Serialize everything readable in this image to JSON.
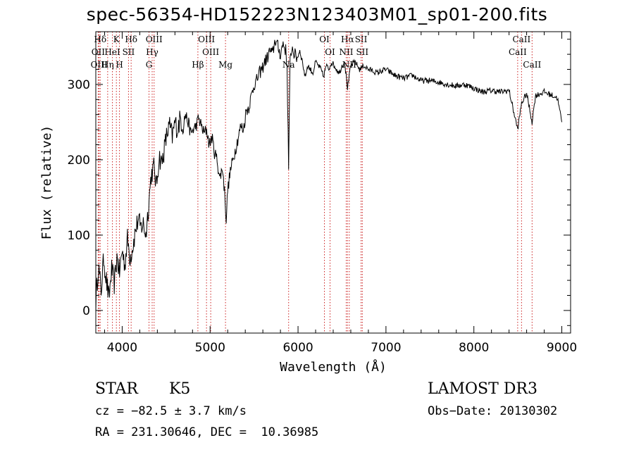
{
  "title": "spec-56354-HD152223N123403M01_sp01-200.fits",
  "chart_data": {
    "type": "line",
    "title": "spec-56354-HD152223N123403M01_sp01-200.fits",
    "xlabel": "Wavelength (Å)",
    "ylabel": "Flux (relative)",
    "xlim": [
      3700,
      9100
    ],
    "ylim": [
      -30,
      370
    ],
    "xticks": [
      4000,
      5000,
      6000,
      7000,
      8000,
      9000
    ],
    "yticks": [
      0,
      100,
      200,
      300
    ],
    "grid": false,
    "series": [
      {
        "name": "flux",
        "x": [
          3700,
          3730,
          3760,
          3790,
          3820,
          3850,
          3880,
          3910,
          3940,
          3970,
          4000,
          4030,
          4060,
          4090,
          4120,
          4150,
          4180,
          4210,
          4240,
          4270,
          4300,
          4330,
          4360,
          4390,
          4420,
          4450,
          4480,
          4510,
          4540,
          4570,
          4600,
          4630,
          4660,
          4690,
          4720,
          4750,
          4780,
          4810,
          4840,
          4870,
          4900,
          4930,
          4960,
          4990,
          5020,
          5050,
          5080,
          5110,
          5140,
          5170,
          5183,
          5200,
          5230,
          5260,
          5290,
          5320,
          5350,
          5380,
          5410,
          5440,
          5470,
          5500,
          5530,
          5560,
          5590,
          5620,
          5650,
          5680,
          5710,
          5740,
          5770,
          5800,
          5830,
          5860,
          5875,
          5893,
          5910,
          5930,
          5960,
          5990,
          6020,
          6050,
          6080,
          6110,
          6140,
          6170,
          6200,
          6230,
          6260,
          6290,
          6320,
          6350,
          6380,
          6410,
          6440,
          6470,
          6500,
          6530,
          6563,
          6600,
          6650,
          6700,
          6750,
          6800,
          6850,
          6900,
          6950,
          7000,
          7100,
          7200,
          7300,
          7400,
          7500,
          7600,
          7700,
          7800,
          7900,
          8000,
          8100,
          8200,
          8300,
          8400,
          8498,
          8542,
          8600,
          8662,
          8700,
          8800,
          8900,
          8950,
          9000
        ],
        "y": [
          10,
          60,
          25,
          70,
          40,
          15,
          55,
          35,
          70,
          50,
          80,
          60,
          95,
          70,
          85,
          105,
          120,
          110,
          115,
          100,
          140,
          180,
          190,
          165,
          205,
          195,
          215,
          235,
          245,
          230,
          250,
          240,
          255,
          245,
          260,
          250,
          235,
          240,
          245,
          255,
          245,
          235,
          240,
          220,
          230,
          210,
          200,
          175,
          190,
          150,
          120,
          160,
          185,
          200,
          215,
          230,
          245,
          240,
          265,
          270,
          285,
          300,
          305,
          315,
          320,
          330,
          335,
          345,
          340,
          360,
          350,
          340,
          355,
          345,
          325,
          190,
          330,
          350,
          340,
          335,
          345,
          330,
          310,
          325,
          320,
          315,
          330,
          325,
          320,
          310,
          325,
          320,
          330,
          325,
          320,
          315,
          325,
          330,
          295,
          325,
          330,
          320,
          325,
          320,
          318,
          315,
          318,
          320,
          312,
          308,
          312,
          305,
          305,
          303,
          300,
          298,
          300,
          295,
          290,
          292,
          290,
          292,
          240,
          275,
          288,
          250,
          285,
          290,
          285,
          282,
          250
        ]
      }
    ],
    "lines": [
      {
        "label": "Hδ",
        "x": 3750,
        "row": 1
      },
      {
        "label": "OII",
        "x": 3727,
        "row": 2
      },
      {
        "label": "OIII",
        "x": 3737,
        "row": 3
      },
      {
        "label": "K",
        "x": 3934,
        "row": 1
      },
      {
        "label": "H",
        "x": 3969,
        "row": 3
      },
      {
        "label": "HeI",
        "x": 3889,
        "row": 2
      },
      {
        "label": "Hη",
        "x": 3835,
        "row": 3
      },
      {
        "label": "SII",
        "x": 4072,
        "row": 2
      },
      {
        "label": "Hδ",
        "x": 4102,
        "row": 1
      },
      {
        "label": "OIII",
        "x": 4363,
        "row": 1
      },
      {
        "label": "Hγ",
        "x": 4341,
        "row": 2
      },
      {
        "label": "G",
        "x": 4305,
        "row": 3
      },
      {
        "label": "Hβ",
        "x": 4861,
        "row": 3
      },
      {
        "label": "OIII",
        "x": 4959,
        "row": 1
      },
      {
        "label": "OIII",
        "x": 5007,
        "row": 2
      },
      {
        "label": "Mg",
        "x": 5175,
        "row": 3
      },
      {
        "label": "Na",
        "x": 5893,
        "row": 3
      },
      {
        "label": "OI",
        "x": 6300,
        "row": 1
      },
      {
        "label": "OI",
        "x": 6364,
        "row": 2
      },
      {
        "label": "Hα",
        "x": 6563,
        "row": 1
      },
      {
        "label": "NII",
        "x": 6548,
        "row": 2
      },
      {
        "label": "NII",
        "x": 6583,
        "row": 3
      },
      {
        "label": "SII",
        "x": 6717,
        "row": 1
      },
      {
        "label": "SII",
        "x": 6731,
        "row": 2
      },
      {
        "label": "CaII",
        "x": 8542,
        "row": 1
      },
      {
        "label": "CaII",
        "x": 8498,
        "row": 2
      },
      {
        "label": "CaII",
        "x": 8662,
        "row": 3
      }
    ]
  },
  "info": {
    "class_label": "STAR",
    "subclass": "K5",
    "survey": "LAMOST DR3",
    "cz": "cz = −82.5 ± 3.7 km/s",
    "obs_date": "Obs−Date: 20130302",
    "coords": "RA = 231.30646, DEC =  10.36985"
  }
}
